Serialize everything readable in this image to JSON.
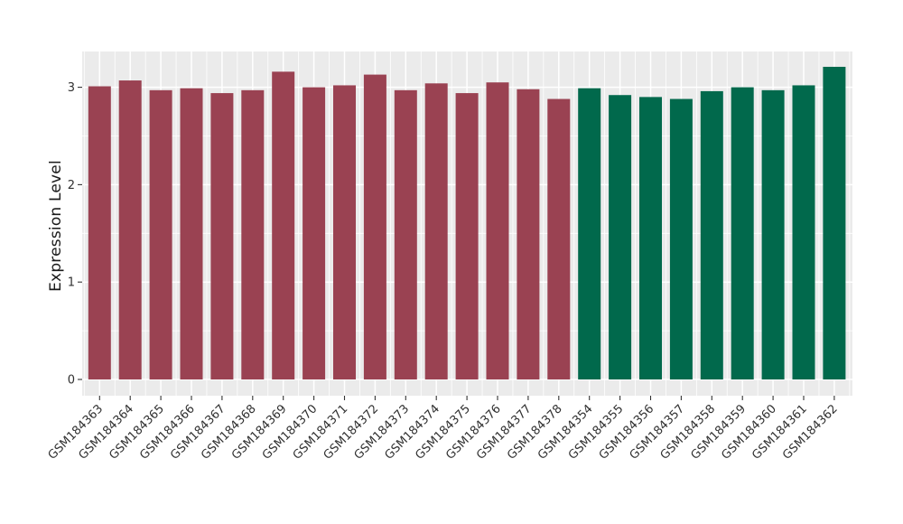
{
  "chart_data": {
    "type": "bar",
    "title": "",
    "xlabel": "",
    "ylabel": "Expression Level",
    "ylim": [
      0,
      3.37
    ],
    "yticks": [
      0,
      1,
      2,
      3
    ],
    "grid": true,
    "legend": false,
    "categories": [
      "GSM184363",
      "GSM184364",
      "GSM184365",
      "GSM184366",
      "GSM184367",
      "GSM184368",
      "GSM184369",
      "GSM184370",
      "GSM184371",
      "GSM184372",
      "GSM184373",
      "GSM184374",
      "GSM184375",
      "GSM184376",
      "GSM184377",
      "GSM184378",
      "GSM184354",
      "GSM184355",
      "GSM184356",
      "GSM184357",
      "GSM184358",
      "GSM184359",
      "GSM184360",
      "GSM184361",
      "GSM184362"
    ],
    "values": [
      3.01,
      3.07,
      2.97,
      2.99,
      2.94,
      2.97,
      3.16,
      3.0,
      3.02,
      3.13,
      2.97,
      3.04,
      2.94,
      3.05,
      2.98,
      2.88,
      2.99,
      2.92,
      2.9,
      2.88,
      2.96,
      3.0,
      2.97,
      3.02,
      3.21
    ],
    "groups": [
      "group1",
      "group1",
      "group1",
      "group1",
      "group1",
      "group1",
      "group1",
      "group1",
      "group1",
      "group1",
      "group1",
      "group1",
      "group1",
      "group1",
      "group1",
      "group1",
      "group2",
      "group2",
      "group2",
      "group2",
      "group2",
      "group2",
      "group2",
      "group2",
      "group2"
    ],
    "group_colors": {
      "group1": "#9A4252",
      "group2": "#01694C"
    },
    "colors": {
      "panel_background": "#EBEBEB",
      "grid_line": "#FFFFFF",
      "tick_mark": "#333333",
      "tick_label": "#303030",
      "axis_title": "#1a1a1a"
    }
  }
}
